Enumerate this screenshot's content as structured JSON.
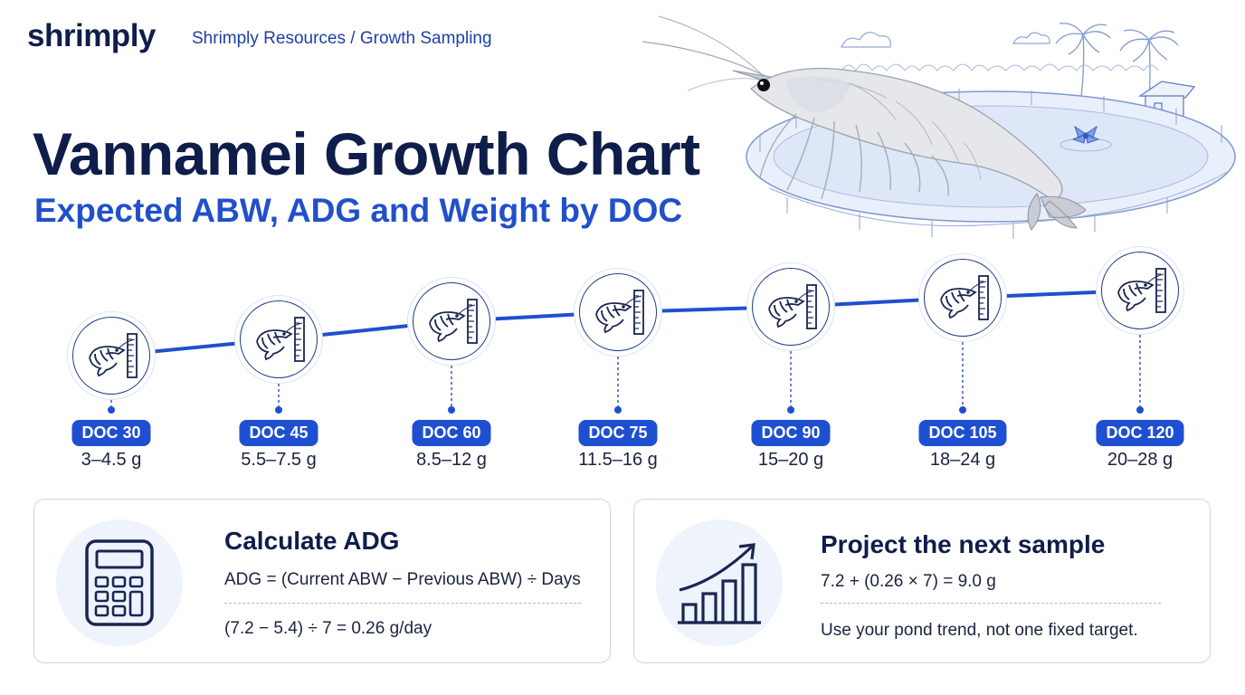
{
  "header": {
    "logo": "shrimply",
    "breadcrumb": "Shrimply Resources / Growth Sampling"
  },
  "hero": {
    "title": "Vannamei Growth Chart",
    "subtitle": "Expected ABW, ADG and Weight by DOC"
  },
  "timeline": {
    "milestones": [
      {
        "doc": "DOC 30",
        "weight": "3–4.5 g",
        "icon": "shrimp-ruler-icon"
      },
      {
        "doc": "DOC 45",
        "weight": "5.5–7.5 g",
        "icon": "shrimp-ruler-icon"
      },
      {
        "doc": "DOC 60",
        "weight": "8.5–12 g",
        "icon": "shrimp-ruler-icon"
      },
      {
        "doc": "DOC 75",
        "weight": "11.5–16 g",
        "icon": "shrimp-ruler-icon"
      },
      {
        "doc": "DOC 90",
        "weight": "15–20 g",
        "icon": "shrimp-ruler-icon"
      },
      {
        "doc": "DOC 105",
        "weight": "18–24 g",
        "icon": "shrimp-ruler-icon"
      },
      {
        "doc": "DOC 120",
        "weight": "20–28 g",
        "icon": "shrimp-ruler-icon"
      }
    ]
  },
  "cards": {
    "adg": {
      "icon": "calculator-icon",
      "title": "Calculate ADG",
      "formula": "ADG = (Current ABW − Previous ABW) ÷ Days",
      "example": "(7.2 − 5.4) ÷ 7 = 0.26 g/day"
    },
    "projection": {
      "icon": "growth-chart-icon",
      "title": "Project the next sample",
      "formula": "7.2 + (0.26 × 7) = 9.0 g",
      "note": "Use your pond trend, not one fixed target."
    }
  },
  "colors": {
    "navy": "#0f1d4a",
    "accent_blue": "#1f4fd1",
    "subtitle_blue": "#2150c9",
    "card_border": "#c9d6ee"
  }
}
